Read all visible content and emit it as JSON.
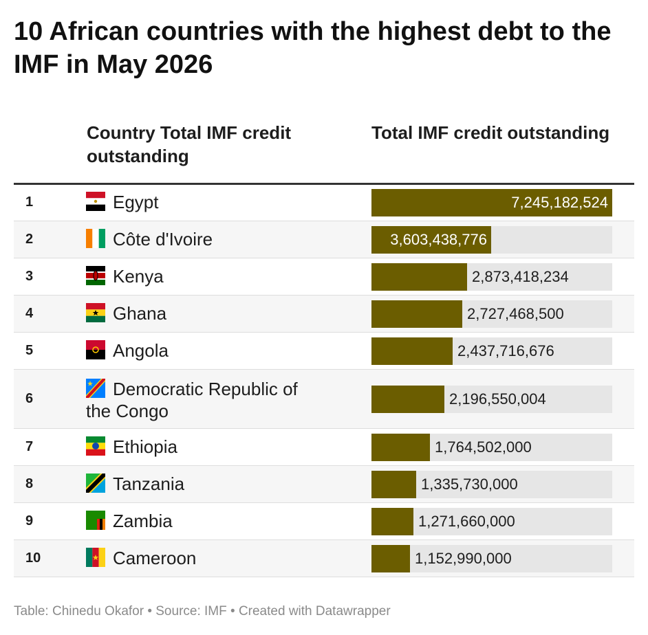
{
  "title": "10 African countries with the highest debt to the IMF in May 2026",
  "columns": {
    "country": "Country Total IMF credit outstanding",
    "value": "Total IMF credit outstanding"
  },
  "footer": "Table: Chinedu Okafor • Source: IMF • Created with Datawrapper",
  "colors": {
    "bar": "#6b5d00",
    "track": "#e6e6e6"
  },
  "chart_data": {
    "type": "table",
    "title": "10 African countries with the highest debt to the IMF in May 2026",
    "columns": [
      "Country Total IMF credit outstanding",
      "Total IMF credit outstanding"
    ],
    "xlim": [
      0,
      7245182524
    ],
    "rows": [
      {
        "rank": "1",
        "country": "Egypt",
        "flag": "egypt-flag-icon",
        "value": 7245182524,
        "label": "7,245,182,524"
      },
      {
        "rank": "2",
        "country": "Côte d'Ivoire",
        "flag": "cote-divoire-flag-icon",
        "value": 3603438776,
        "label": "3,603,438,776"
      },
      {
        "rank": "3",
        "country": "Kenya",
        "flag": "kenya-flag-icon",
        "value": 2873418234,
        "label": "2,873,418,234"
      },
      {
        "rank": "4",
        "country": "Ghana",
        "flag": "ghana-flag-icon",
        "value": 2727468500,
        "label": "2,727,468,500"
      },
      {
        "rank": "5",
        "country": "Angola",
        "flag": "angola-flag-icon",
        "value": 2437716676,
        "label": "2,437,716,676"
      },
      {
        "rank": "6",
        "country": "Democratic Republic of the Congo",
        "flag": "drc-flag-icon",
        "value": 2196550004,
        "label": "2,196,550,004"
      },
      {
        "rank": "7",
        "country": "Ethiopia",
        "flag": "ethiopia-flag-icon",
        "value": 1764502000,
        "label": "1,764,502,000"
      },
      {
        "rank": "8",
        "country": "Tanzania",
        "flag": "tanzania-flag-icon",
        "value": 1335730000,
        "label": "1,335,730,000"
      },
      {
        "rank": "9",
        "country": "Zambia",
        "flag": "zambia-flag-icon",
        "value": 1271660000,
        "label": "1,271,660,000"
      },
      {
        "rank": "10",
        "country": "Cameroon",
        "flag": "cameroon-flag-icon",
        "value": 1152990000,
        "label": "1,152,990,000"
      }
    ]
  }
}
